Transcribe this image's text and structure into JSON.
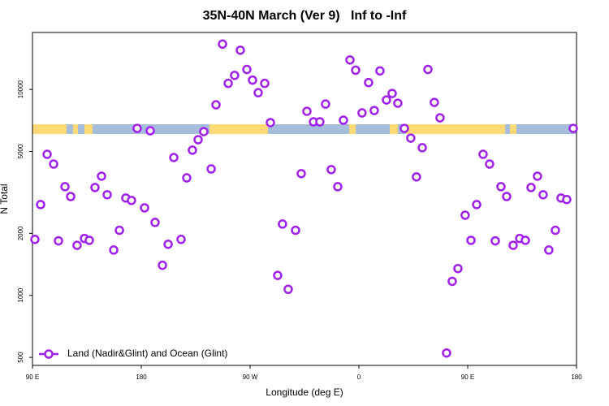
{
  "chart_data": {
    "type": "scatter",
    "title": "35N-40N March (Ver 9)   Inf to -Inf",
    "x_label": "Longitude (deg E)",
    "y_label": "N Total",
    "xlim": [
      90,
      540
    ],
    "xticks": [
      {
        "value": 90,
        "label": "90 E"
      },
      180,
      {
        "value": 270,
        "label": "90 W"
      },
      {
        "value": 360,
        "label": "0"
      },
      {
        "value": 450,
        "label": "90 E"
      },
      {
        "value": 540,
        "label": "180"
      }
    ],
    "ylim": [
      457,
      18900
    ],
    "yticks": [
      500,
      1000,
      2000,
      5000,
      10000
    ],
    "y_scale": "log",
    "legend": "lower left",
    "series": [
      {
        "name": "Land (Nadir&Glint) and Ocean (Glint)",
        "color": "#a020f0",
        "x": [
          92.0,
          96.7,
          102.1,
          107.5,
          111.5,
          116.9,
          121.6,
          126.9,
          133.0,
          137.0,
          141.7,
          147.1,
          151.8,
          157.2,
          161.9,
          167.2,
          171.9,
          176.6,
          182.7,
          187.4,
          191.4,
          197.5,
          202.2,
          206.9,
          212.9,
          217.6,
          222.3,
          227.0,
          231.7,
          237.8,
          241.8,
          247.2,
          251.9,
          257.2,
          261.9,
          267.3,
          272.0,
          276.7,
          282.1,
          286.8,
          292.8,
          296.8,
          301.5,
          307.6,
          312.3,
          317.0,
          322.4,
          327.7,
          332.4,
          337.1,
          342.5,
          347.2,
          352.6,
          357.3,
          362.6,
          368.0,
          372.7,
          377.4,
          382.8,
          387.5,
          392.2,
          397.6,
          402.9,
          407.6,
          412.4,
          417.1,
          422.4,
          427.1,
          432.5,
          437.2,
          441.9,
          447.9,
          452.7,
          457.4,
          462.7,
          468.1,
          472.8,
          477.5,
          482.2,
          487.6,
          493.0,
          497.7,
          502.4,
          507.7,
          512.4,
          517.1,
          522.5,
          527.2,
          531.9,
          537.3
        ],
        "values": [
          1870,
          2760,
          4840,
          4340,
          1840,
          3370,
          3020,
          1750,
          1890,
          1850,
          3340,
          3790,
          3080,
          1660,
          2070,
          2970,
          2890,
          6470,
          2660,
          6300,
          2260,
          1400,
          1770,
          4670,
          1870,
          3720,
          5070,
          5700,
          6240,
          4110,
          8420,
          16600,
          10700,
          11700,
          15500,
          12500,
          11100,
          9640,
          10700,
          6900,
          1250,
          2220,
          1070,
          2070,
          3900,
          7830,
          6960,
          6960,
          8490,
          4080,
          3370,
          7090,
          13900,
          12400,
          7690,
          10800,
          7900,
          12300,
          8890,
          9560,
          8570,
          6470,
          5800,
          3760,
          5210,
          12500,
          8650,
          7280,
          525,
          1170,
          1350,
          2450,
          1850,
          2760,
          4840,
          4340,
          1840,
          3370,
          3020,
          1750,
          1890,
          1850,
          3340,
          3790,
          3080,
          1660,
          2070,
          2970,
          2920,
          6470
        ]
      }
    ]
  }
}
